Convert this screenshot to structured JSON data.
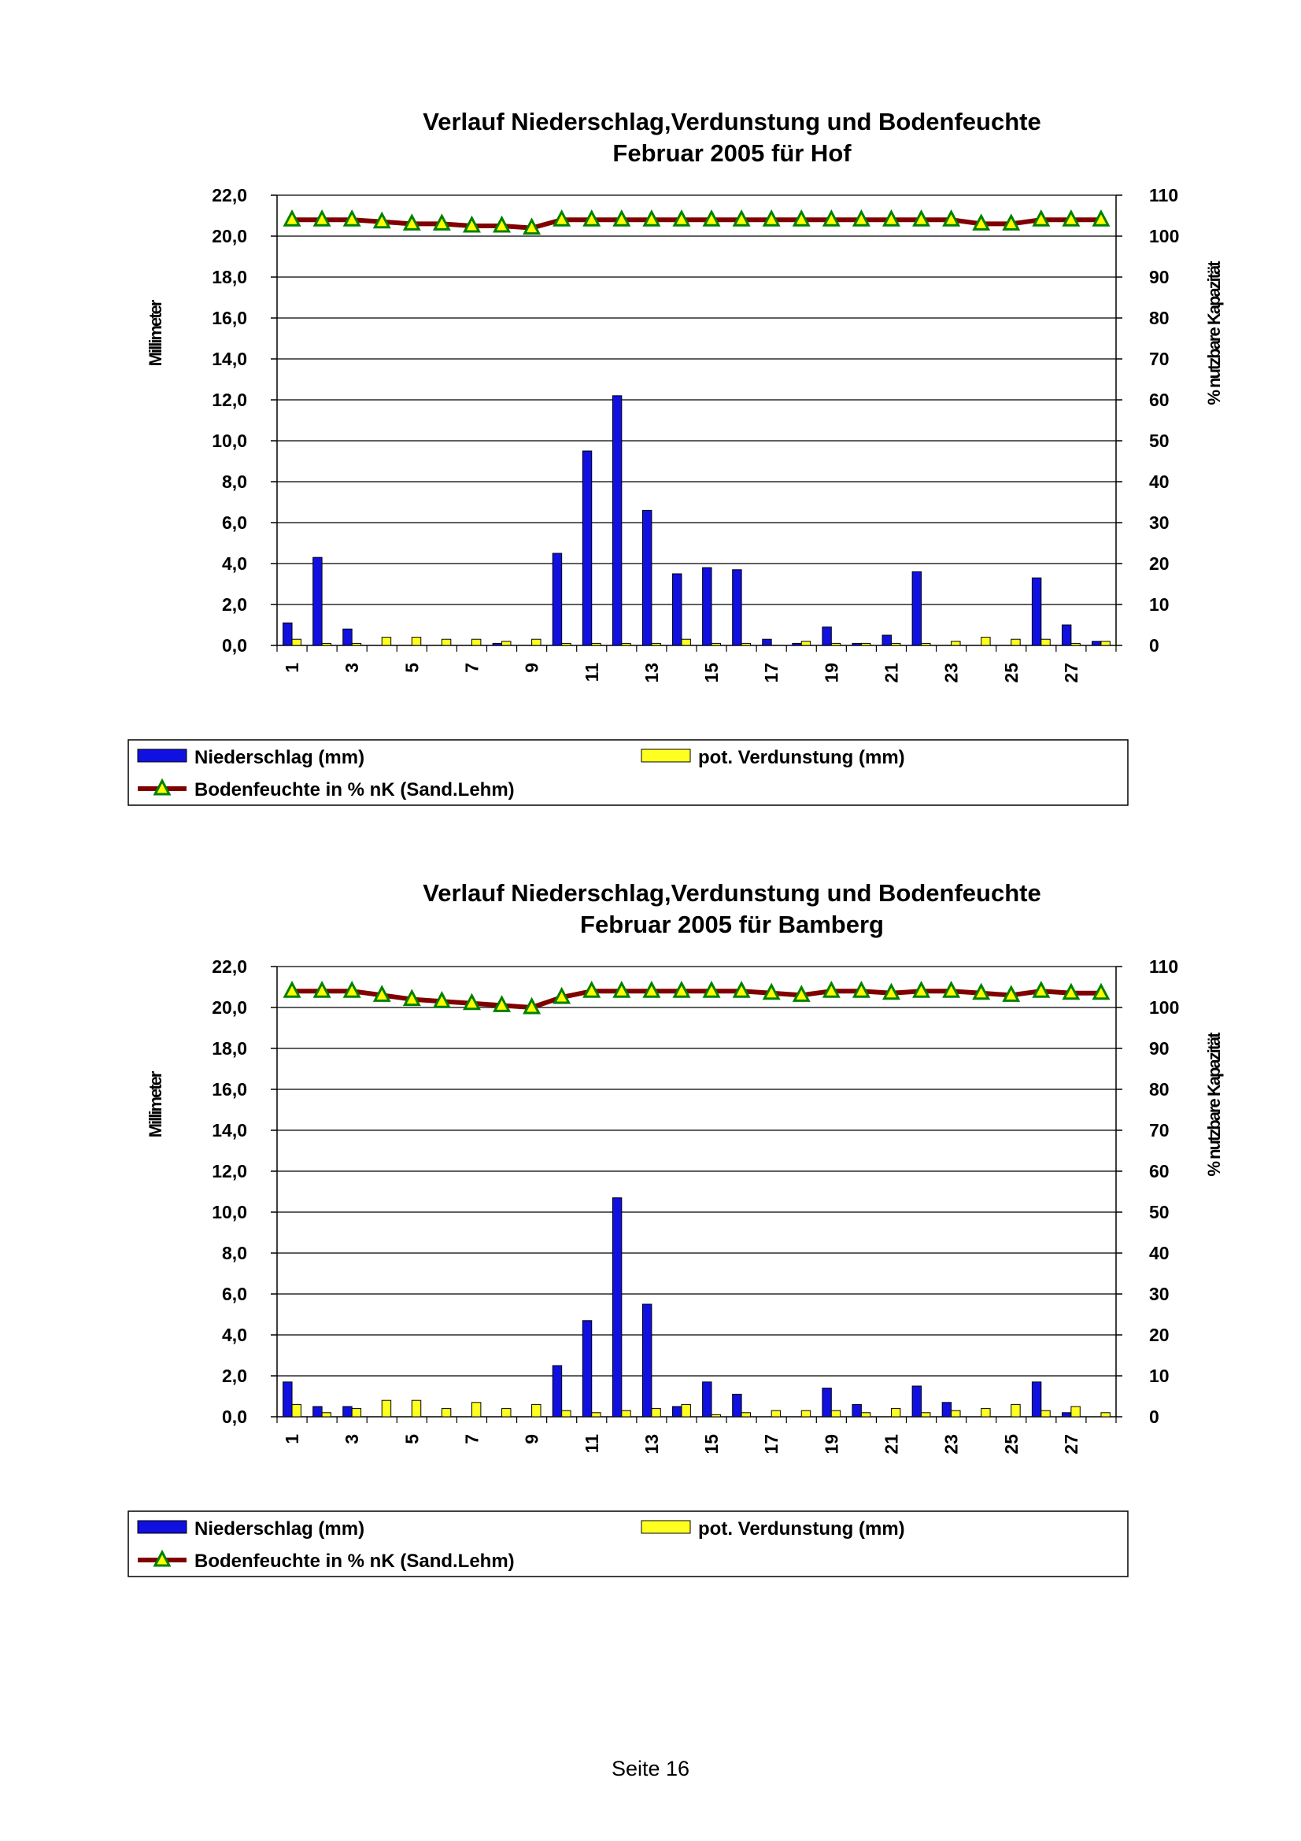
{
  "footer": {
    "page_label": "Seite 16"
  },
  "colors": {
    "precip": "#1010e0",
    "evap": "#ffff20",
    "moisture_line": "#800000",
    "moisture_marker": "#ffff00",
    "moisture_marker_edge": "#008000"
  },
  "chart_data": [
    {
      "type": "bar",
      "title_lines": [
        "Verlauf Niederschlag,Verdunstung und Bodenfeuchte",
        "Februar 2005 für Hof"
      ],
      "ylabel": "Millimeter",
      "y2label": "% nutzbare Kapazität",
      "ylim": [
        0,
        22
      ],
      "y2lim": [
        0,
        110
      ],
      "y_ticks": [
        "0,0",
        "2,0",
        "4,0",
        "6,0",
        "8,0",
        "10,0",
        "12,0",
        "14,0",
        "16,0",
        "18,0",
        "20,0",
        "22,0"
      ],
      "y2_ticks": [
        "0",
        "10",
        "20",
        "30",
        "40",
        "50",
        "60",
        "70",
        "80",
        "90",
        "100",
        "110"
      ],
      "x_ticks": [
        "1",
        "3",
        "5",
        "7",
        "9",
        "11",
        "13",
        "15",
        "17",
        "19",
        "21",
        "23",
        "25",
        "27"
      ],
      "grid": true,
      "legend": [
        "Niederschlag (mm)",
        "pot. Verdunstung (mm)",
        "Bodenfeuchte in % nK (Sand.Lehm)"
      ],
      "legend_position": "bottom",
      "days": [
        1,
        2,
        3,
        4,
        5,
        6,
        7,
        8,
        9,
        10,
        11,
        12,
        13,
        14,
        15,
        16,
        17,
        18,
        19,
        20,
        21,
        22,
        23,
        24,
        25,
        26,
        27,
        28
      ],
      "series": [
        {
          "name": "Niederschlag (mm)",
          "type": "bar",
          "values": [
            1.1,
            4.3,
            0.8,
            0.0,
            0.0,
            0.0,
            0.0,
            0.1,
            0.0,
            4.5,
            9.5,
            12.2,
            6.6,
            3.5,
            3.8,
            3.7,
            0.3,
            0.1,
            0.9,
            0.1,
            0.5,
            3.6,
            0.0,
            0.0,
            0.0,
            3.3,
            1.0,
            0.2
          ]
        },
        {
          "name": "pot. Verdunstung (mm)",
          "type": "bar",
          "values": [
            0.3,
            0.1,
            0.1,
            0.4,
            0.4,
            0.3,
            0.3,
            0.2,
            0.3,
            0.1,
            0.1,
            0.1,
            0.1,
            0.3,
            0.1,
            0.1,
            0.0,
            0.2,
            0.1,
            0.1,
            0.1,
            0.1,
            0.2,
            0.4,
            0.3,
            0.3,
            0.1,
            0.2
          ]
        },
        {
          "name": "Bodenfeuchte in % nK (Sand.Lehm)",
          "type": "line",
          "axis": "right",
          "values": [
            104,
            104,
            104,
            103.5,
            103,
            103,
            102.5,
            102.5,
            102,
            104,
            104,
            104,
            104,
            104,
            104,
            104,
            104,
            104,
            104,
            104,
            104,
            104,
            104,
            103,
            103,
            104,
            104,
            104
          ]
        }
      ]
    },
    {
      "type": "bar",
      "title_lines": [
        "Verlauf Niederschlag,Verdunstung und Bodenfeuchte",
        "Februar 2005 für Bamberg"
      ],
      "ylabel": "Millimeter",
      "y2label": "% nutzbare Kapazität",
      "ylim": [
        0,
        22
      ],
      "y2lim": [
        0,
        110
      ],
      "y_ticks": [
        "0,0",
        "2,0",
        "4,0",
        "6,0",
        "8,0",
        "10,0",
        "12,0",
        "14,0",
        "16,0",
        "18,0",
        "20,0",
        "22,0"
      ],
      "y2_ticks": [
        "0",
        "10",
        "20",
        "30",
        "40",
        "50",
        "60",
        "70",
        "80",
        "90",
        "100",
        "110"
      ],
      "x_ticks": [
        "1",
        "3",
        "5",
        "7",
        "9",
        "11",
        "13",
        "15",
        "17",
        "19",
        "21",
        "23",
        "25",
        "27"
      ],
      "grid": true,
      "legend": [
        "Niederschlag (mm)",
        "pot. Verdunstung (mm)",
        "Bodenfeuchte in % nK (Sand.Lehm)"
      ],
      "legend_position": "bottom",
      "days": [
        1,
        2,
        3,
        4,
        5,
        6,
        7,
        8,
        9,
        10,
        11,
        12,
        13,
        14,
        15,
        16,
        17,
        18,
        19,
        20,
        21,
        22,
        23,
        24,
        25,
        26,
        27,
        28
      ],
      "series": [
        {
          "name": "Niederschlag (mm)",
          "type": "bar",
          "values": [
            1.7,
            0.5,
            0.5,
            0.0,
            0.0,
            0.0,
            0.0,
            0.0,
            0.0,
            2.5,
            4.7,
            10.7,
            5.5,
            0.5,
            1.7,
            1.1,
            0.0,
            0.0,
            1.4,
            0.6,
            0.0,
            1.5,
            0.7,
            0.0,
            0.0,
            1.7,
            0.2,
            0.0
          ]
        },
        {
          "name": "pot. Verdunstung (mm)",
          "type": "bar",
          "values": [
            0.6,
            0.2,
            0.4,
            0.8,
            0.8,
            0.4,
            0.7,
            0.4,
            0.6,
            0.3,
            0.2,
            0.3,
            0.4,
            0.6,
            0.1,
            0.2,
            0.3,
            0.3,
            0.3,
            0.2,
            0.4,
            0.2,
            0.3,
            0.4,
            0.6,
            0.3,
            0.5,
            0.2
          ]
        },
        {
          "name": "Bodenfeuchte in % nK (Sand.Lehm)",
          "type": "line",
          "axis": "right",
          "values": [
            104,
            104,
            104,
            103,
            102,
            101.5,
            101,
            100.5,
            100,
            102.5,
            104,
            104,
            104,
            104,
            104,
            104,
            103.5,
            103,
            104,
            104,
            103.5,
            104,
            104,
            103.5,
            103,
            104,
            103.5,
            103.5
          ]
        }
      ]
    }
  ]
}
